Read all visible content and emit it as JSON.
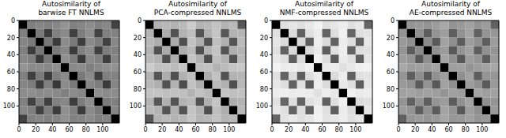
{
  "chart_data": [
    {
      "type": "heatmap",
      "title": "Autosimilarity of\nbarwise FT NNLMS",
      "xlim": [
        0,
        120
      ],
      "ylim": [
        0,
        120
      ],
      "xticks": [
        0,
        20,
        40,
        60,
        80,
        100
      ],
      "yticks": [
        0,
        20,
        40,
        60,
        80,
        100
      ],
      "cell_edges": [
        0,
        10,
        20,
        30,
        40,
        50,
        60,
        70,
        80,
        90,
        100,
        110,
        120
      ],
      "value_range": [
        0,
        1
      ],
      "cells": [
        [
          1,
          0.5,
          0.48,
          0.5,
          0.47,
          0.42,
          0.5,
          0.48,
          0.45,
          0.5,
          0.47,
          0.74
        ],
        [
          0.5,
          1,
          0.52,
          0.76,
          0.5,
          0.46,
          0.75,
          0.51,
          0.44,
          0.74,
          0.5,
          0.49
        ],
        [
          0.48,
          0.52,
          1,
          0.53,
          0.77,
          0.45,
          0.52,
          0.76,
          0.46,
          0.51,
          0.75,
          0.47
        ],
        [
          0.5,
          0.76,
          0.53,
          1,
          0.52,
          0.47,
          0.77,
          0.5,
          0.45,
          0.75,
          0.51,
          0.5
        ],
        [
          0.47,
          0.5,
          0.77,
          0.52,
          1,
          0.44,
          0.51,
          0.78,
          0.46,
          0.5,
          0.76,
          0.48
        ],
        [
          0.42,
          0.46,
          0.45,
          0.47,
          0.44,
          1,
          0.46,
          0.45,
          0.5,
          0.47,
          0.44,
          0.43
        ],
        [
          0.5,
          0.75,
          0.52,
          0.77,
          0.51,
          0.46,
          1,
          0.52,
          0.45,
          0.76,
          0.5,
          0.49
        ],
        [
          0.48,
          0.51,
          0.76,
          0.5,
          0.78,
          0.45,
          0.52,
          1,
          0.47,
          0.51,
          0.77,
          0.48
        ],
        [
          0.45,
          0.44,
          0.46,
          0.45,
          0.46,
          0.5,
          0.45,
          0.47,
          1,
          0.44,
          0.46,
          0.45
        ],
        [
          0.5,
          0.74,
          0.51,
          0.75,
          0.5,
          0.47,
          0.76,
          0.51,
          0.44,
          1,
          0.52,
          0.5
        ],
        [
          0.47,
          0.5,
          0.75,
          0.51,
          0.76,
          0.44,
          0.5,
          0.77,
          0.46,
          0.52,
          1,
          0.48
        ],
        [
          0.74,
          0.49,
          0.47,
          0.5,
          0.48,
          0.43,
          0.49,
          0.48,
          0.45,
          0.5,
          0.48,
          1
        ]
      ]
    },
    {
      "type": "heatmap",
      "title": "Autosimilarity of\nPCA-compressed NNLMS",
      "xlim": [
        0,
        120
      ],
      "ylim": [
        0,
        120
      ],
      "xticks": [
        0,
        20,
        40,
        60,
        80,
        100
      ],
      "yticks": [
        0,
        20,
        40,
        60,
        80,
        100
      ],
      "cell_edges": [
        0,
        10,
        20,
        30,
        40,
        50,
        60,
        70,
        80,
        90,
        100,
        110,
        120
      ],
      "value_range": [
        0,
        1
      ],
      "cells": [
        [
          1,
          0.3,
          0.28,
          0.3,
          0.27,
          0.2,
          0.3,
          0.28,
          0.24,
          0.3,
          0.27,
          0.66
        ],
        [
          0.3,
          1,
          0.32,
          0.68,
          0.3,
          0.25,
          0.67,
          0.31,
          0.23,
          0.66,
          0.3,
          0.29
        ],
        [
          0.28,
          0.32,
          1,
          0.33,
          0.69,
          0.24,
          0.32,
          0.68,
          0.25,
          0.31,
          0.67,
          0.27
        ],
        [
          0.3,
          0.68,
          0.33,
          1,
          0.32,
          0.27,
          0.69,
          0.3,
          0.24,
          0.67,
          0.31,
          0.3
        ],
        [
          0.27,
          0.3,
          0.69,
          0.32,
          1,
          0.23,
          0.31,
          0.7,
          0.25,
          0.3,
          0.68,
          0.28
        ],
        [
          0.2,
          0.25,
          0.24,
          0.27,
          0.23,
          1,
          0.25,
          0.24,
          0.3,
          0.27,
          0.23,
          0.22
        ],
        [
          0.3,
          0.67,
          0.32,
          0.69,
          0.31,
          0.25,
          1,
          0.32,
          0.24,
          0.68,
          0.3,
          0.29
        ],
        [
          0.28,
          0.31,
          0.68,
          0.3,
          0.7,
          0.24,
          0.32,
          1,
          0.27,
          0.31,
          0.69,
          0.28
        ],
        [
          0.24,
          0.23,
          0.25,
          0.24,
          0.25,
          0.3,
          0.24,
          0.27,
          1,
          0.23,
          0.25,
          0.24
        ],
        [
          0.3,
          0.66,
          0.31,
          0.67,
          0.3,
          0.27,
          0.68,
          0.31,
          0.23,
          1,
          0.32,
          0.3
        ],
        [
          0.27,
          0.3,
          0.67,
          0.31,
          0.68,
          0.23,
          0.3,
          0.69,
          0.25,
          0.32,
          1,
          0.28
        ],
        [
          0.66,
          0.29,
          0.27,
          0.3,
          0.28,
          0.22,
          0.29,
          0.28,
          0.24,
          0.3,
          0.28,
          1
        ]
      ]
    },
    {
      "type": "heatmap",
      "title": "Autosimilarity of\nNMF-compressed NNLMS",
      "xlim": [
        0,
        120
      ],
      "ylim": [
        0,
        120
      ],
      "xticks": [
        0,
        20,
        40,
        60,
        80,
        100
      ],
      "yticks": [
        0,
        20,
        40,
        60,
        80,
        100
      ],
      "cell_edges": [
        0,
        10,
        20,
        30,
        40,
        50,
        60,
        70,
        80,
        90,
        100,
        110,
        120
      ],
      "value_range": [
        0,
        1
      ],
      "cells": [
        [
          1,
          0.12,
          0.1,
          0.12,
          0.09,
          0.05,
          0.12,
          0.1,
          0.07,
          0.12,
          0.09,
          0.6
        ],
        [
          0.12,
          1,
          0.14,
          0.62,
          0.12,
          0.08,
          0.61,
          0.13,
          0.06,
          0.6,
          0.12,
          0.11
        ],
        [
          0.1,
          0.14,
          1,
          0.15,
          0.63,
          0.07,
          0.14,
          0.62,
          0.08,
          0.13,
          0.61,
          0.09
        ],
        [
          0.12,
          0.62,
          0.15,
          1,
          0.14,
          0.09,
          0.63,
          0.12,
          0.07,
          0.61,
          0.13,
          0.12
        ],
        [
          0.09,
          0.12,
          0.63,
          0.14,
          1,
          0.06,
          0.13,
          0.64,
          0.08,
          0.12,
          0.62,
          0.1
        ],
        [
          0.05,
          0.08,
          0.07,
          0.09,
          0.06,
          1,
          0.08,
          0.07,
          0.12,
          0.09,
          0.06,
          0.05
        ],
        [
          0.12,
          0.61,
          0.14,
          0.63,
          0.13,
          0.08,
          1,
          0.14,
          0.07,
          0.62,
          0.12,
          0.11
        ],
        [
          0.1,
          0.13,
          0.62,
          0.12,
          0.64,
          0.07,
          0.14,
          1,
          0.09,
          0.13,
          0.63,
          0.1
        ],
        [
          0.07,
          0.06,
          0.08,
          0.07,
          0.08,
          0.12,
          0.07,
          0.09,
          1,
          0.06,
          0.08,
          0.07
        ],
        [
          0.12,
          0.6,
          0.13,
          0.61,
          0.12,
          0.09,
          0.62,
          0.13,
          0.06,
          1,
          0.14,
          0.12
        ],
        [
          0.09,
          0.12,
          0.61,
          0.13,
          0.62,
          0.06,
          0.12,
          0.63,
          0.08,
          0.14,
          1,
          0.1
        ],
        [
          0.6,
          0.11,
          0.09,
          0.12,
          0.1,
          0.05,
          0.11,
          0.1,
          0.07,
          0.12,
          0.1,
          1
        ]
      ]
    },
    {
      "type": "heatmap",
      "title": "Autosimilarity of\nAE-compressed NNLMS",
      "xlim": [
        0,
        120
      ],
      "ylim": [
        0,
        120
      ],
      "xticks": [
        0,
        20,
        40,
        60,
        80,
        100
      ],
      "yticks": [
        0,
        20,
        40,
        60,
        80,
        100
      ],
      "cell_edges": [
        0,
        10,
        20,
        30,
        40,
        50,
        60,
        70,
        80,
        90,
        100,
        110,
        120
      ],
      "value_range": [
        0,
        1
      ],
      "cells": [
        [
          1,
          0.42,
          0.4,
          0.42,
          0.39,
          0.34,
          0.42,
          0.4,
          0.37,
          0.42,
          0.39,
          0.62
        ],
        [
          0.42,
          1,
          0.44,
          0.64,
          0.42,
          0.38,
          0.63,
          0.43,
          0.36,
          0.62,
          0.42,
          0.41
        ],
        [
          0.4,
          0.44,
          1,
          0.45,
          0.65,
          0.37,
          0.44,
          0.64,
          0.38,
          0.43,
          0.63,
          0.39
        ],
        [
          0.42,
          0.64,
          0.45,
          1,
          0.44,
          0.39,
          0.65,
          0.42,
          0.37,
          0.63,
          0.43,
          0.42
        ],
        [
          0.39,
          0.42,
          0.65,
          0.44,
          1,
          0.36,
          0.43,
          0.66,
          0.38,
          0.42,
          0.64,
          0.4
        ],
        [
          0.34,
          0.38,
          0.37,
          0.39,
          0.36,
          1,
          0.38,
          0.37,
          0.42,
          0.39,
          0.36,
          0.35
        ],
        [
          0.42,
          0.63,
          0.44,
          0.65,
          0.43,
          0.38,
          1,
          0.44,
          0.37,
          0.64,
          0.42,
          0.41
        ],
        [
          0.4,
          0.43,
          0.64,
          0.42,
          0.66,
          0.37,
          0.44,
          1,
          0.39,
          0.43,
          0.65,
          0.4
        ],
        [
          0.37,
          0.36,
          0.38,
          0.37,
          0.38,
          0.42,
          0.37,
          0.39,
          1,
          0.36,
          0.38,
          0.37
        ],
        [
          0.42,
          0.62,
          0.43,
          0.63,
          0.42,
          0.39,
          0.64,
          0.43,
          0.36,
          1,
          0.44,
          0.42
        ],
        [
          0.39,
          0.42,
          0.63,
          0.43,
          0.64,
          0.36,
          0.42,
          0.65,
          0.38,
          0.44,
          1,
          0.4
        ],
        [
          0.62,
          0.41,
          0.39,
          0.42,
          0.4,
          0.35,
          0.41,
          0.4,
          0.37,
          0.42,
          0.4,
          1
        ]
      ]
    }
  ]
}
